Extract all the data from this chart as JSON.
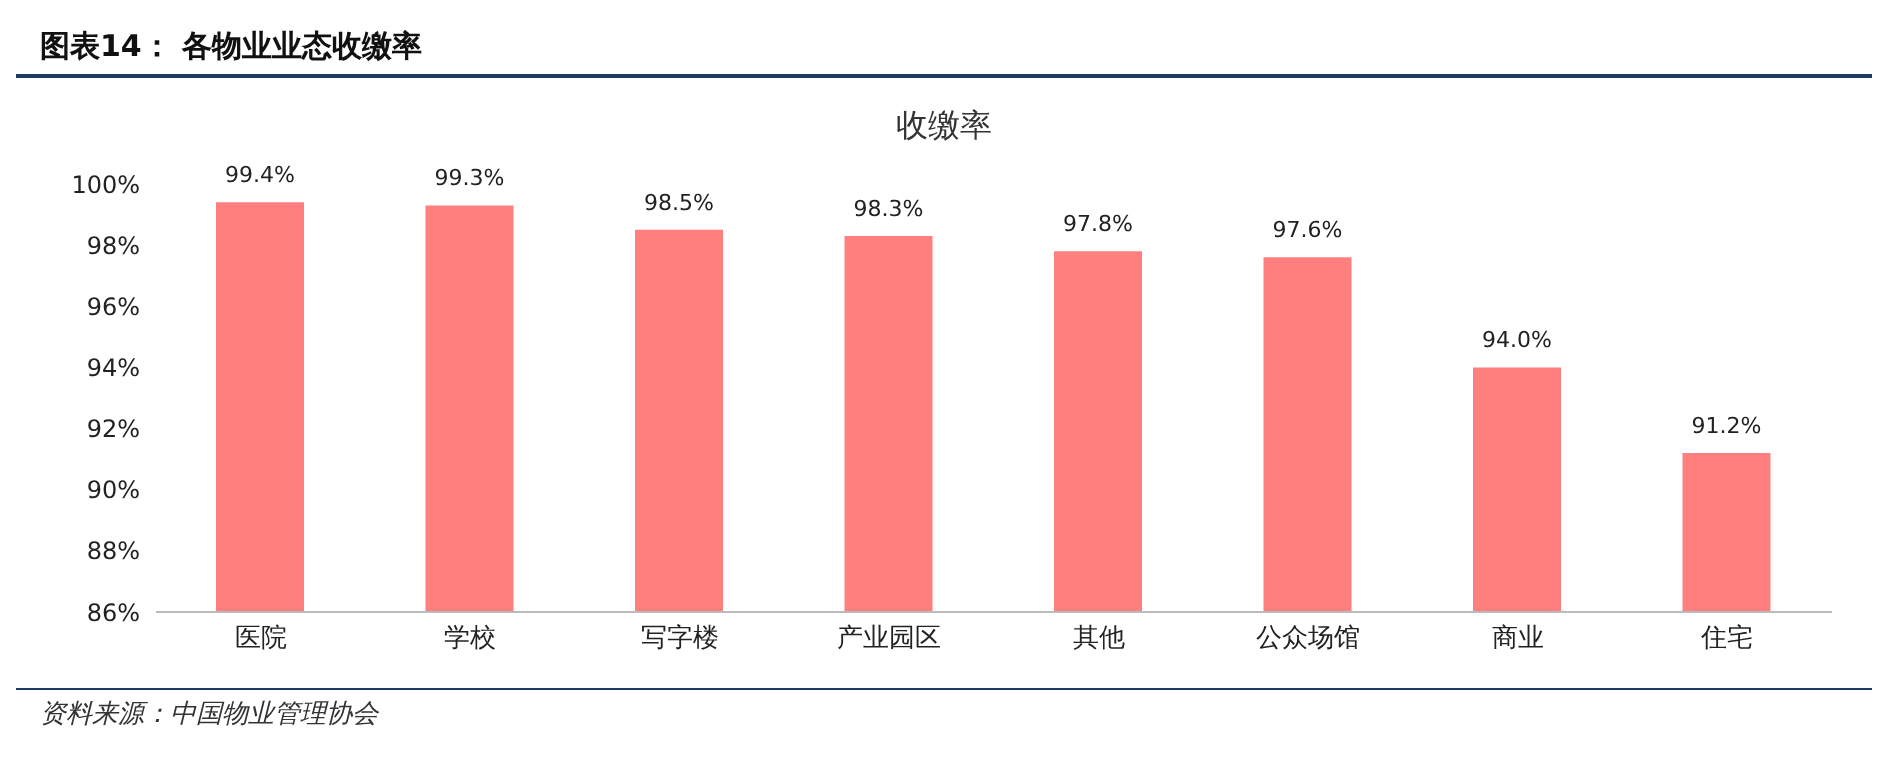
{
  "chart_data": {
    "type": "bar",
    "title": "图表14：  各物业业态收缴率",
    "subtitle": "收缴率",
    "categories": [
      "医院",
      "学校",
      "写字楼",
      "产业园区",
      "其他",
      "公众场馆",
      "商业",
      "住宅"
    ],
    "values": [
      99.4,
      99.3,
      98.5,
      98.3,
      97.8,
      97.6,
      94.0,
      91.2
    ],
    "value_labels": [
      "99.4%",
      "99.3%",
      "98.5%",
      "98.3%",
      "97.8%",
      "97.6%",
      "94.0%",
      "91.2%"
    ],
    "color": "#ff7f7f",
    "ylim": [
      86,
      100
    ],
    "yticks": [
      {
        "value": 86,
        "label": "86%"
      },
      {
        "value": 88,
        "label": "88%"
      },
      {
        "value": 90,
        "label": "90%"
      },
      {
        "value": 92,
        "label": "92%"
      },
      {
        "value": 94,
        "label": "94%"
      },
      {
        "value": 96,
        "label": "96%"
      },
      {
        "value": 98,
        "label": "98%"
      },
      {
        "value": 100,
        "label": "100%"
      }
    ],
    "grid": false,
    "legend": false,
    "annotations": [
      "资料来源：中国物业管理协会"
    ]
  }
}
